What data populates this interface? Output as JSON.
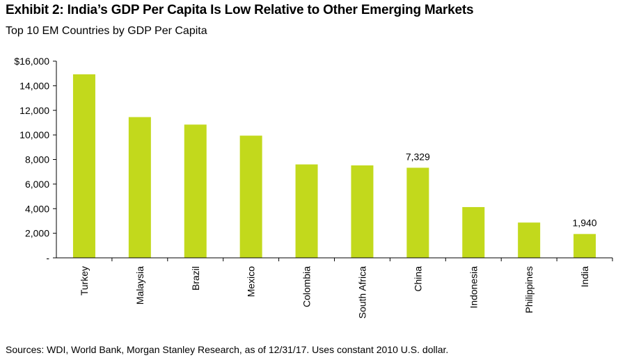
{
  "title": "Exhibit 2: India’s GDP Per Capita Is Low Relative to Other Emerging Markets",
  "subtitle": "Top 10 EM Countries by GDP Per Capita",
  "source": "Sources: WDI, World Bank, Morgan Stanley Research, as of 12/31/17. Uses constant 2010 U.S. dollar.",
  "colors": {
    "bar": "#c2d91c",
    "axis": "#000000"
  },
  "chart_data": {
    "type": "bar",
    "title": "Exhibit 2: India’s GDP Per Capita Is Low Relative to Other Emerging Markets",
    "subtitle": "Top 10 EM Countries by GDP Per Capita",
    "categories": [
      "Turkey",
      "Malaysia",
      "Brazil",
      "Mexico",
      "Colombia",
      "South Africa",
      "China",
      "Indonesia",
      "Philippines",
      "India"
    ],
    "values": [
      14930,
      11450,
      10840,
      9940,
      7600,
      7520,
      7329,
      4130,
      2870,
      1940
    ],
    "ylim": [
      0,
      16000
    ],
    "yticks": [
      0,
      2000,
      4000,
      6000,
      8000,
      10000,
      12000,
      14000,
      16000
    ],
    "ytick_labels": [
      "-",
      "2,000",
      "4,000",
      "6,000",
      "8,000",
      "10,000",
      "12,000",
      "14,000",
      "$16,000"
    ],
    "data_labels": [
      {
        "category": "China",
        "text": "7,329"
      },
      {
        "category": "India",
        "text": "1,940"
      }
    ],
    "grid": false,
    "legend": "none"
  }
}
